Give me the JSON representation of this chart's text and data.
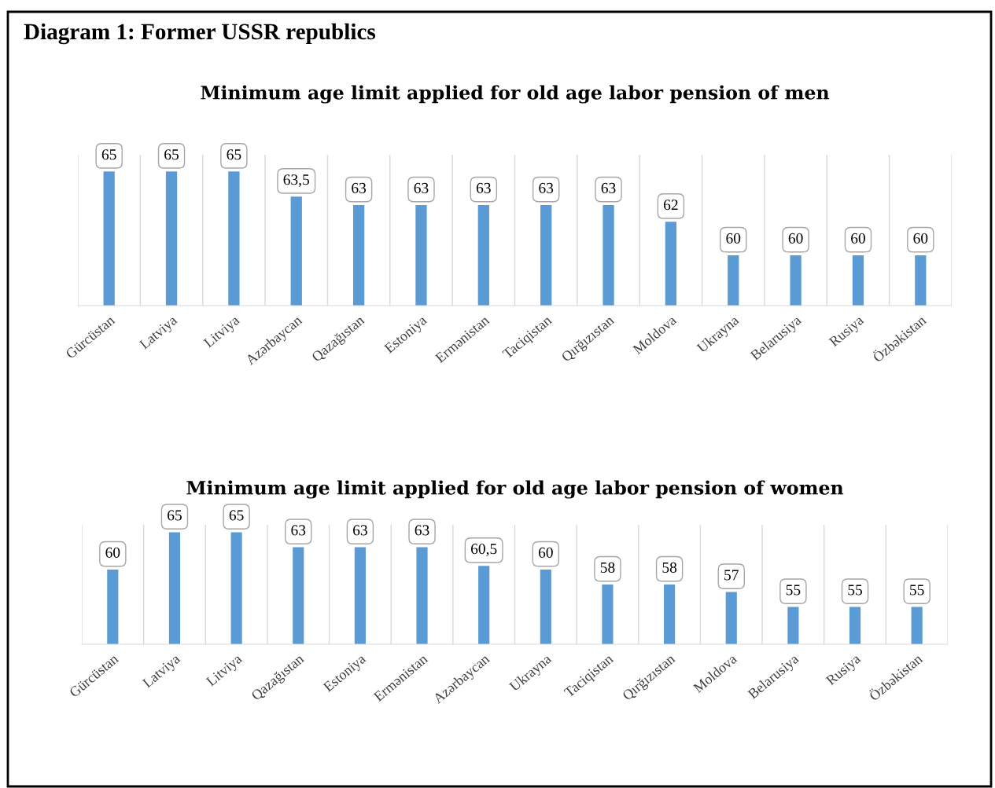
{
  "chart_data": [
    {
      "type": "bar",
      "title": "Minimum age limit applied for old age labor pension of men",
      "annotations": [
        "Diagram 1: Former USSR republics"
      ],
      "categories": [
        "Gürcüstan",
        "Latviya",
        "Litviya",
        "Azərbaycan",
        "Qazağıstan",
        "Estoniya",
        "Ermənistan",
        "Taciqistan",
        "Qırğızıstan",
        "Moldova",
        "Ukrayna",
        "Belarusiya",
        "Rusiya",
        "Özbəkistan"
      ],
      "values": [
        65,
        65,
        65,
        63.5,
        63,
        63,
        63,
        63,
        63,
        62,
        60,
        60,
        60,
        60
      ],
      "value_labels": [
        "65",
        "65",
        "65",
        "63,5",
        "63",
        "63",
        "63",
        "63",
        "63",
        "62",
        "60",
        "60",
        "60",
        "60"
      ],
      "color": "#5b9bd5",
      "ylim": [
        57,
        66
      ],
      "tick_labels": "x",
      "grid": "x"
    },
    {
      "type": "bar",
      "title": "Minimum age limit applied for old age labor pension of women",
      "categories": [
        "Gürcüstan",
        "Latviya",
        "Litviya",
        "Qazağıstan",
        "Estoniya",
        "Ermənistan",
        "Azərbaycan",
        "Ukrayna",
        "Taciqistan",
        "Qırğızıstan",
        "Moldova",
        "Belarusiya",
        "Rusiya",
        "Özbəkistan"
      ],
      "values": [
        60,
        65,
        65,
        63,
        63,
        63,
        60.5,
        60,
        58,
        58,
        57,
        55,
        55,
        55
      ],
      "value_labels": [
        "60",
        "65",
        "65",
        "63",
        "63",
        "63",
        "60,5",
        "60",
        "58",
        "58",
        "57",
        "55",
        "55",
        "55"
      ],
      "color": "#5b9bd5",
      "ylim": [
        50,
        66
      ],
      "tick_labels": "x",
      "grid": "x"
    }
  ]
}
